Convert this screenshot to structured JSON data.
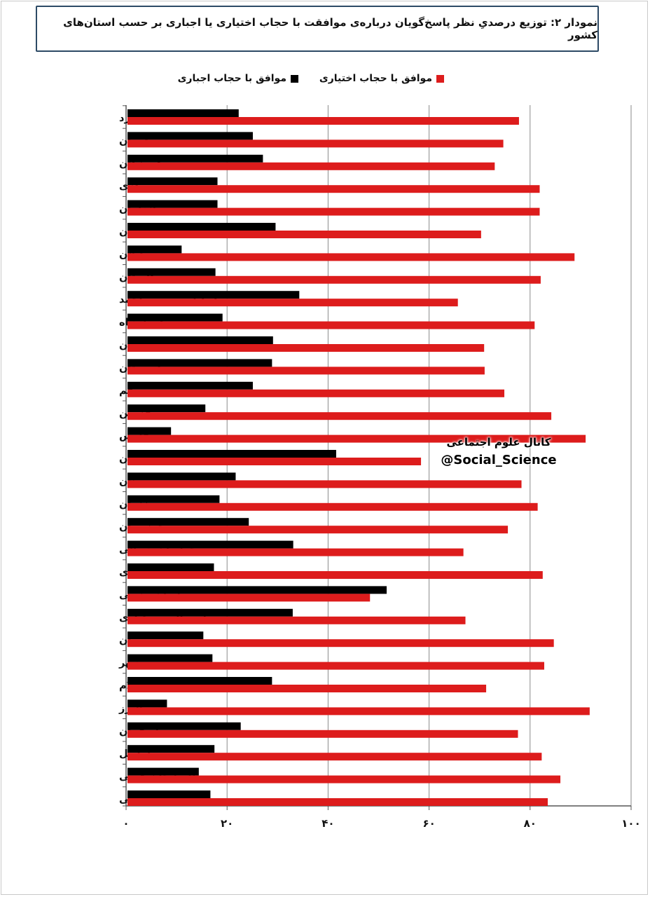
{
  "title": "نمودار ۲: توزیع درصدیِ نظر پاسخ‌گویان درباره‌ی موافقت با حجاب اختیاری یا اجباری بر حسب استان‌های کشور",
  "watermark": {
    "line1": "کانال علوم اجتماعی",
    "line2": "@Social_Science"
  },
  "chart_data": {
    "type": "bar",
    "orientation": "horizontal",
    "categories": [
      "یزد",
      "همدان",
      "هرمزگان",
      "مرکزی",
      "مازندران",
      "لرستان",
      "گیلان",
      "گلستان",
      "کهگیلویه و بویراحمد",
      "کرمانشاه",
      "کرمان",
      "کردستان",
      "قم",
      "قزوین",
      "فارس",
      "سیستان و بلوچستان",
      "سمنان",
      "زنجان",
      "خوزستان",
      "خراسان شمالی",
      "خراسان رضوی",
      "خراسان جنوبی",
      "چهارمحال و بختیاری",
      "تهران",
      "بوشهر",
      "ایلام",
      "البرز",
      "اصفهان",
      "اردبیل",
      "آذربایجان غربی",
      "آذربایجان شرقی"
    ],
    "series": [
      {
        "name": "موافق با حجاب اجباری",
        "color": "#000000",
        "values": [
          22.3,
          25.1,
          27.1,
          18.1,
          18.1,
          29.6,
          11.0,
          17.7,
          34.3,
          19.1,
          29.1,
          28.9,
          25.1,
          15.7,
          8.9,
          41.6,
          21.7,
          18.5,
          24.3,
          33.1,
          17.4,
          51.6,
          33.0,
          15.3,
          17.1,
          28.9,
          8.1,
          22.7,
          17.5,
          14.4,
          16.7
        ]
      },
      {
        "name": "موافق با حجاب اختیاری",
        "color": "#dd1c1c",
        "values": [
          77.8,
          74.7,
          73.0,
          81.9,
          81.9,
          70.3,
          88.8,
          82.1,
          65.7,
          80.9,
          70.9,
          71.0,
          74.9,
          84.2,
          91.0,
          58.4,
          78.3,
          81.5,
          75.6,
          66.8,
          82.5,
          48.3,
          67.2,
          84.7,
          82.8,
          71.3,
          91.8,
          77.6,
          82.3,
          86.0,
          83.5
        ]
      }
    ],
    "x_tick_labels": [
      "۰",
      "۲۰",
      "۴۰",
      "۶۰",
      "۸۰",
      "۱۰۰"
    ],
    "xlim": [
      0,
      100
    ],
    "grid": "vertical",
    "legend_position": "top"
  }
}
